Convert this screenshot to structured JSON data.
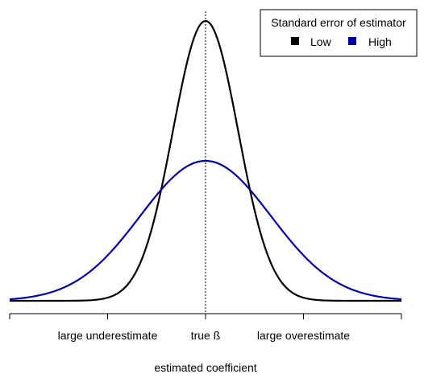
{
  "chart_data": {
    "type": "line",
    "xlabel": "estimated coefficient",
    "ylabel": "",
    "xlim": [
      -3,
      3
    ],
    "ylim": [
      0,
      1
    ],
    "grid": false,
    "legend": {
      "title": "Standard error of estimator",
      "position": "top-right",
      "entries": [
        {
          "label": "Low",
          "color": "#000000"
        },
        {
          "label": "High",
          "color": "#0000aa"
        }
      ]
    },
    "ticks": [
      {
        "x": -3,
        "label": ""
      },
      {
        "x": -1.5,
        "label": "large underestimate"
      },
      {
        "x": 0,
        "label": "true ß"
      },
      {
        "x": 1.5,
        "label": "large overestimate"
      },
      {
        "x": 3,
        "label": ""
      }
    ],
    "reference_line": {
      "x": 0,
      "style": "dotted"
    },
    "series": [
      {
        "name": "Low",
        "color": "#000000",
        "distribution": "normal",
        "mean": 0,
        "sd": 0.5
      },
      {
        "name": "High",
        "color": "#0000aa",
        "distribution": "normal",
        "mean": 0,
        "sd": 1
      }
    ]
  }
}
